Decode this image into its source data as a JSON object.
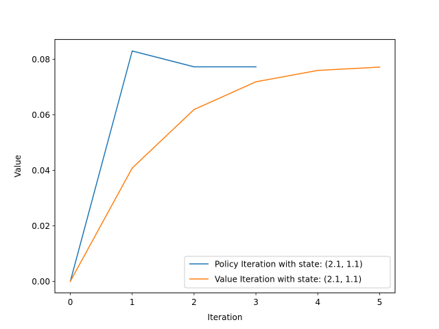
{
  "chart_data": {
    "type": "line",
    "title": "",
    "xlabel": "Iteration",
    "ylabel": "Value",
    "xlim": [
      -0.25,
      5.25
    ],
    "ylim": [
      -0.00415,
      0.08715
    ],
    "xticks": [
      0,
      1,
      2,
      3,
      4,
      5
    ],
    "xtick_labels": [
      "0",
      "1",
      "2",
      "3",
      "4",
      "5"
    ],
    "yticks": [
      0.0,
      0.02,
      0.04,
      0.06,
      0.08
    ],
    "ytick_labels": [
      "0.00",
      "0.02",
      "0.04",
      "0.06",
      "0.08"
    ],
    "grid": false,
    "legend_position": "lower-right",
    "series": [
      {
        "name": "Policy Iteration with state: (2.1, 1.1)",
        "color": "#1f77b4",
        "x": [
          0,
          1,
          2,
          3
        ],
        "y": [
          0.0,
          0.083,
          0.0773,
          0.0773
        ]
      },
      {
        "name": "Value Iteration with state: (2.1, 1.1)",
        "color": "#ff7f0e",
        "x": [
          0,
          1,
          2,
          3,
          4,
          5
        ],
        "y": [
          0.0,
          0.0408,
          0.0619,
          0.0719,
          0.076,
          0.0772
        ]
      }
    ]
  }
}
